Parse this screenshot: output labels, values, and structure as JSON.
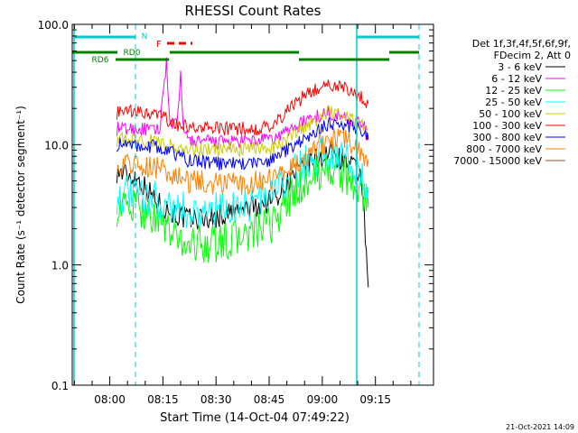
{
  "chart_data": {
    "type": "line",
    "title": "RHESSI Count Rates",
    "xlabel": "Start Time (14-Oct-04 07:49:22)",
    "ylabel": "Count Rate (s⁻¹ detector segment⁻¹)",
    "ylog": true,
    "ylim": [
      0.1,
      100.0
    ],
    "yticks": [
      {
        "value": 0.1,
        "label": "0.1"
      },
      {
        "value": 1.0,
        "label": "1.0"
      },
      {
        "value": 10.0,
        "label": "10.0"
      },
      {
        "value": 100.0,
        "label": "100.0"
      }
    ],
    "xlim_minutes": [
      -10.6,
      91.4
    ],
    "xticks": [
      {
        "minute": 0,
        "label": "08:00"
      },
      {
        "minute": 15,
        "label": "08:15"
      },
      {
        "minute": 30,
        "label": "08:30"
      },
      {
        "minute": 45,
        "label": "08:45"
      },
      {
        "minute": 60,
        "label": "09:00"
      },
      {
        "minute": 75,
        "label": "09:15"
      }
    ],
    "legend_header": [
      "Det 1f,3f,4f,5f,6f,9f,",
      "FDecim 2, Att 0"
    ],
    "legend_position": "right",
    "series": [
      {
        "name": "3 - 6 keV",
        "color": "#000000",
        "x": [
          2,
          8,
          14,
          18,
          22,
          30,
          40,
          46,
          52,
          58,
          62,
          66,
          71,
          73
        ],
        "y": [
          6,
          5.2,
          3.2,
          2.7,
          2.4,
          2.5,
          3.0,
          3.5,
          5.5,
          7.5,
          8.5,
          7.5,
          5.5,
          0.65
        ]
      },
      {
        "name": "6 - 12 keV",
        "color": "#ff00ff",
        "x": [
          2,
          8,
          14,
          16,
          17,
          18,
          19,
          20,
          21,
          22,
          26,
          36,
          46,
          52,
          58,
          62,
          66,
          71,
          73
        ],
        "y": [
          13.5,
          13.5,
          13.0,
          50,
          14,
          15,
          14,
          38,
          12,
          11,
          10.5,
          10.5,
          11,
          14,
          17,
          18.5,
          17,
          15,
          12
        ]
      },
      {
        "name": "12 - 25 keV",
        "color": "#00ff00",
        "x": [
          2,
          8,
          14,
          18,
          22,
          30,
          40,
          46,
          52,
          58,
          62,
          66,
          71,
          73
        ],
        "y": [
          3.0,
          3.0,
          2.4,
          1.7,
          1.5,
          1.5,
          1.8,
          2.2,
          4.0,
          5.5,
          6.5,
          5.5,
          4.2,
          3.0
        ]
      },
      {
        "name": "25 - 50 keV",
        "color": "#00ffff",
        "x": [
          2,
          8,
          14,
          18,
          22,
          30,
          40,
          46,
          52,
          58,
          62,
          66,
          71,
          73
        ],
        "y": [
          3.8,
          3.8,
          3.4,
          3.0,
          2.8,
          2.8,
          3.3,
          4.0,
          5.8,
          7.8,
          8.8,
          7.8,
          6.0,
          4.2
        ]
      },
      {
        "name": "50 - 100 keV",
        "color": "#cccc00",
        "x": [
          2,
          8,
          14,
          18,
          22,
          30,
          40,
          46,
          52,
          58,
          62,
          66,
          71,
          73
        ],
        "y": [
          11.0,
          11.0,
          10.5,
          9.5,
          9.0,
          9.0,
          9.2,
          9.5,
          12,
          16,
          19,
          18,
          15,
          12
        ]
      },
      {
        "name": "100 - 300 keV",
        "color": "#ff0000",
        "x": [
          2,
          8,
          14,
          18,
          22,
          30,
          40,
          46,
          52,
          58,
          62,
          66,
          71,
          73
        ],
        "y": [
          18.5,
          18.5,
          17.5,
          15,
          14,
          13.5,
          13.5,
          14,
          22,
          29,
          32,
          30,
          25,
          22
        ]
      },
      {
        "name": "300 - 800 keV",
        "color": "#0000ff",
        "x": [
          2,
          8,
          14,
          18,
          22,
          30,
          40,
          46,
          52,
          58,
          62,
          66,
          71,
          73
        ],
        "y": [
          10,
          10,
          9.5,
          8.5,
          7.5,
          7.0,
          7.0,
          7.5,
          10,
          13,
          15,
          15,
          13,
          11
        ]
      },
      {
        "name": "800 - 7000 keV",
        "color": "#ff8000",
        "x": [
          2,
          8,
          14,
          18,
          22,
          30,
          40,
          46,
          52,
          58,
          62,
          66,
          71,
          73
        ],
        "y": [
          7,
          7,
          6.5,
          5.5,
          5,
          4.8,
          4.8,
          5.2,
          7,
          9.5,
          11,
          11,
          9,
          7.5
        ]
      },
      {
        "name": "7000 - 15000 keV",
        "color": "#a0522d",
        "x": [],
        "y": []
      }
    ],
    "annotations": {
      "N": {
        "label": "N",
        "color": "#00cccc"
      },
      "F": {
        "label": "F",
        "color": "#ff0000"
      },
      "RD0": {
        "label": "RD0",
        "color": "#008000"
      },
      "RD6": {
        "label": "RD6",
        "color": "#008000"
      }
    },
    "timestamp": "21-Oct-2021 14:09"
  }
}
